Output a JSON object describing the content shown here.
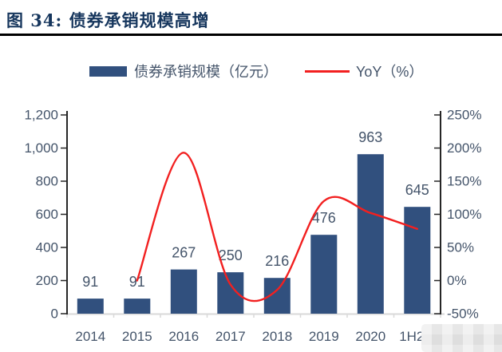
{
  "figure": {
    "title": "图 34: 债券承销规模高增"
  },
  "legend": [
    {
      "label": "债券承销规模（亿元）",
      "swatch": "bar-swatch",
      "color": "#31507E"
    },
    {
      "label": "YoY（%）",
      "swatch": "line-swatch",
      "color": "#F22020"
    }
  ],
  "colors": {
    "bar": "#31507E",
    "line": "#F22020",
    "text": "#44546A",
    "title": "#16365D",
    "value_axis_line": "#262626",
    "category_axis_line": "#D9D9D9"
  },
  "chart_data": {
    "type": "bar",
    "categories": [
      "2014",
      "2015",
      "2016",
      "2017",
      "2018",
      "2019",
      "2020",
      "1H2"
    ],
    "series": [
      {
        "name": "债券承销规模（亿元）",
        "type": "bar",
        "axis": "left",
        "values": [
          91,
          91,
          267,
          250,
          216,
          476,
          963,
          645
        ],
        "data_labels": [
          "91",
          "91",
          "267",
          "250",
          "216",
          "476",
          "963",
          "645"
        ]
      },
      {
        "name": "YoY（%）",
        "type": "line",
        "axis": "right",
        "values": [
          null,
          0,
          193,
          -6,
          -14,
          120,
          102,
          78
        ]
      }
    ],
    "left_axis": {
      "min": 0,
      "max": 1200,
      "step": 200,
      "tick_labels": [
        "0",
        "200",
        "400",
        "600",
        "800",
        "1,000",
        "1,200"
      ]
    },
    "right_axis": {
      "min": -50,
      "max": 250,
      "step": 50,
      "tick_labels": [
        "-50%",
        "0%",
        "50%",
        "100%",
        "150%",
        "200%",
        "250%"
      ]
    },
    "title": "债券承销规模高增",
    "xlabel": "",
    "ylabel": "",
    "legend_position": "top",
    "grid": false,
    "line_smooth": true,
    "x_label_offsets": [
      0,
      0,
      0,
      0,
      0,
      0,
      0,
      -7
    ],
    "last_x_label_obscured": true
  }
}
